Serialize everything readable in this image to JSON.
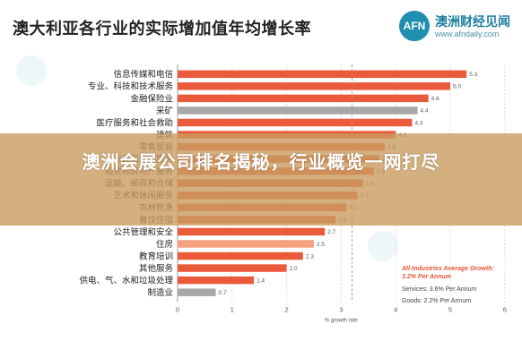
{
  "logo": {
    "mark": "AFN",
    "name": "澳洲财经见闻",
    "url": "www.afndaily.com"
  },
  "chart_data": {
    "type": "bar",
    "orientation": "horizontal",
    "title": "澳大利亚各行业的实际增加值年均增长率",
    "xlabel": "% growth rate",
    "ylabel": "",
    "xlim": [
      0,
      6
    ],
    "xticks": [
      0,
      1,
      2,
      3,
      4,
      5,
      6
    ],
    "grid": "dashed vertical gridlines",
    "reference_line": {
      "value": 3.2,
      "label": "All-Industries Average Growth: 3.2% Per Annum"
    },
    "categories": [
      "信息传媒和电信",
      "专业、科技和技术服务",
      "金融保险业",
      "采矿",
      "医疗服务和社会救助",
      "建筑",
      "零售贸易",
      "行政和支持服务",
      "租赁和房地产服务",
      "运输、邮政和仓储",
      "艺术和休闲服务",
      "农林牧渔",
      "餐饮住宿",
      "公共管理和安全",
      "住房",
      "教育培训",
      "其他服务",
      "供电、气、水和垃圾处理",
      "制造业"
    ],
    "values": [
      5.3,
      5.0,
      4.6,
      4.4,
      4.3,
      4.0,
      3.8,
      3.7,
      3.6,
      3.4,
      3.3,
      3.1,
      2.9,
      2.7,
      2.5,
      2.3,
      2.0,
      1.4,
      0.7
    ],
    "value_labels": [
      "5.3",
      "5.0",
      "4.6",
      "4.4",
      "4.3",
      "4.0",
      "3.8",
      "3.7",
      "3.6",
      "3.4",
      "3.3",
      "3.1",
      "2.9",
      "2.7",
      "2.5",
      "2.3",
      "2.0",
      "1.4",
      "0.7"
    ],
    "annotations": [
      "All-Industries Average Growth:",
      "3.2% Per Annum",
      "Services: 3.6% Per Annum",
      "Goods: 2.2% Per Annum"
    ],
    "colors": {
      "bar": "#ec5a3c",
      "bar_light": "#f5a07e",
      "bar_grey": "#a7a7a7",
      "reference_line": "#999999"
    }
  },
  "overlay": {
    "headline": "澳洲会展公司排名揭秘，行业概览一网打尽"
  }
}
